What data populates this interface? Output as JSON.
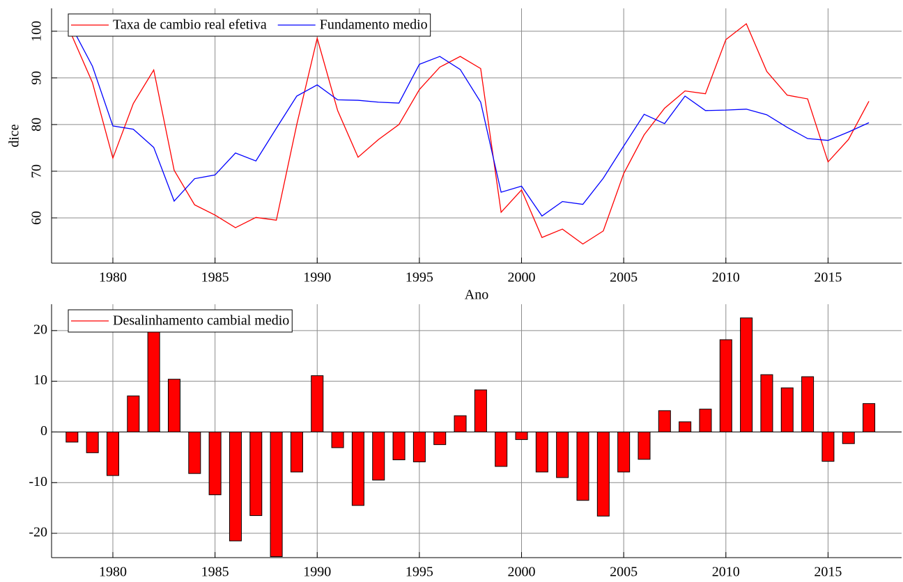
{
  "chart_data": [
    {
      "type": "line",
      "xlabel": "Ano",
      "ylabel": "dice",
      "x": [
        1978,
        1979,
        1980,
        1981,
        1982,
        1983,
        1984,
        1985,
        1986,
        1987,
        1988,
        1989,
        1990,
        1991,
        1992,
        1993,
        1994,
        1995,
        1996,
        1997,
        1998,
        1999,
        2000,
        2001,
        2002,
        2003,
        2004,
        2005,
        2006,
        2007,
        2008,
        2009,
        2010,
        2011,
        2012,
        2013,
        2014,
        2015,
        2016,
        2017
      ],
      "series": [
        {
          "name": "Taxa de cambio real efetiva",
          "color": "#ff0000",
          "values": [
            99,
            89,
            72.8,
            84.5,
            91.7,
            70.2,
            62.8,
            60.6,
            57.9,
            60.1,
            59.5,
            80,
            98.5,
            83,
            73,
            76.8,
            80,
            87.5,
            92.3,
            94.6,
            92,
            61.2,
            66,
            55.8,
            57.6,
            54.4,
            57.2,
            69.5,
            77.8,
            83.5,
            87.2,
            86.6,
            98.2,
            101.6,
            91.4,
            86.3,
            85.5,
            72,
            76.8,
            85
          ]
        },
        {
          "name": "Fundamento medio",
          "color": "#0000ff",
          "values": [
            100.8,
            92.5,
            79.7,
            79,
            75.1,
            63.6,
            68.4,
            69.2,
            73.9,
            72.2,
            79.2,
            86.1,
            88.5,
            85.3,
            85.2,
            84.8,
            84.6,
            92.9,
            94.6,
            91.8,
            84.8,
            65.5,
            66.8,
            60.4,
            63.5,
            62.9,
            68.5,
            75.4,
            82.2,
            80.2,
            86.1,
            83,
            83.1,
            83.3,
            82.1,
            79.4,
            77,
            76.6,
            78.4,
            80.4
          ]
        }
      ],
      "xlim": [
        1977,
        2018.6
      ],
      "xticks": [
        1980,
        1985,
        1990,
        1995,
        2000,
        2005,
        2010,
        2015
      ],
      "ylim": [
        50.3,
        104.9
      ],
      "yticks": [
        60,
        70,
        80,
        90,
        100
      ],
      "grid": true,
      "legend": "upper left"
    },
    {
      "type": "bar",
      "x": [
        1978,
        1979,
        1980,
        1981,
        1982,
        1983,
        1984,
        1985,
        1986,
        1987,
        1988,
        1989,
        1990,
        1991,
        1992,
        1993,
        1994,
        1995,
        1996,
        1997,
        1998,
        1999,
        2000,
        2001,
        2002,
        2003,
        2004,
        2005,
        2006,
        2007,
        2008,
        2009,
        2010,
        2011,
        2012,
        2013,
        2014,
        2015,
        2016,
        2017
      ],
      "series": [
        {
          "name": "Desalinhamento cambial medio",
          "color": "#ff0000",
          "values": [
            -2.0,
            -4.1,
            -8.6,
            7.1,
            22.2,
            10.4,
            -8.2,
            -12.4,
            -21.5,
            -16.5,
            -24.6,
            -7.9,
            11.1,
            -3.1,
            -14.5,
            -9.5,
            -5.5,
            -5.9,
            -2.5,
            3.2,
            8.3,
            -6.8,
            -1.5,
            -7.9,
            -9.0,
            -13.5,
            -16.6,
            -7.9,
            -5.4,
            4.2,
            2.0,
            4.5,
            18.2,
            22.5,
            11.3,
            8.7,
            10.9,
            -5.8,
            -2.3,
            5.6
          ]
        }
      ],
      "xlim": [
        1977,
        2018.6
      ],
      "xticks": [
        1980,
        1985,
        1990,
        1995,
        2000,
        2005,
        2010,
        2015
      ],
      "ylim": [
        -24.8,
        25.2
      ],
      "yticks": [
        -20,
        -10,
        0,
        10,
        20
      ],
      "grid": true,
      "legend": "upper left"
    }
  ]
}
